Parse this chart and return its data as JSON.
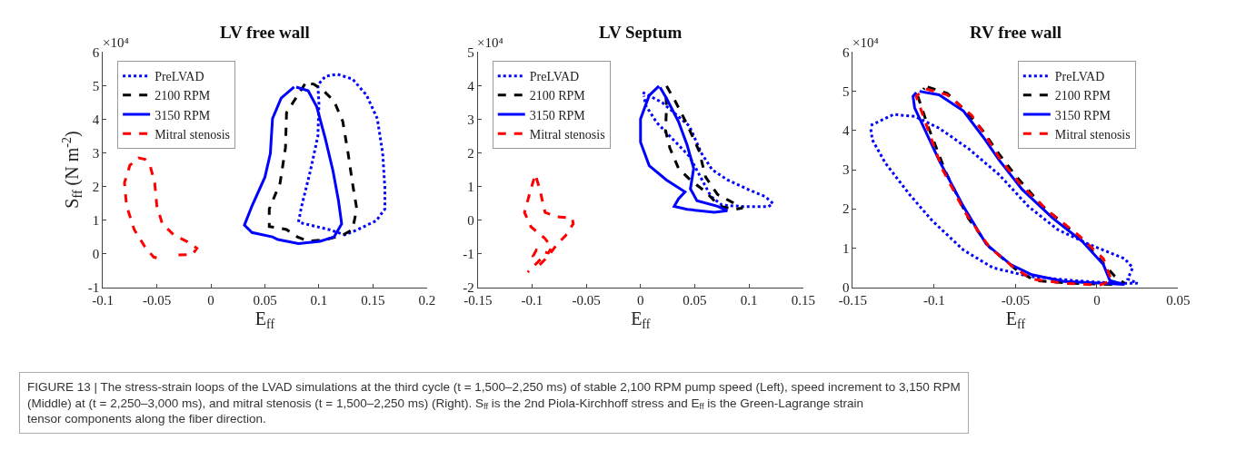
{
  "chart_data": [
    {
      "type": "line",
      "title": "LV free wall",
      "xlabel": "E$_{ff}$",
      "ylabel": "S$_{ff}$ (N m$^{-2}$)",
      "xlim": [
        -0.1,
        0.2
      ],
      "xticks": [
        -0.1,
        -0.05,
        0,
        0.05,
        0.1,
        0.15,
        0.2
      ],
      "ylim": [
        -1,
        6
      ],
      "yticks": [
        -1,
        0,
        1,
        2,
        3,
        4,
        5,
        6
      ],
      "legend": "top left",
      "annotations": [
        "×10⁴"
      ],
      "series": [
        {
          "name": "PreLVAD",
          "color": "#0000ff",
          "line_style": "dotted",
          "x": [
            0.081,
            0.084,
            0.092,
            0.099,
            0.1,
            0.099,
            0.106,
            0.117,
            0.131,
            0.144,
            0.154,
            0.159,
            0.161,
            0.161,
            0.153,
            0.136,
            0.124,
            0.109,
            0.092,
            0.083
          ],
          "values": [
            0.94,
            1.42,
            2.46,
            3.5,
            4.46,
            5.02,
            5.28,
            5.34,
            5.2,
            4.72,
            4.02,
            2.98,
            1.94,
            1.33,
            0.98,
            0.72,
            0.56,
            0.72,
            0.85,
            0.92
          ]
        },
        {
          "name": "2100 RPM",
          "color": "#000000",
          "line_style": "dashed",
          "x": [
            0.087,
            0.07,
            0.069,
            0.064,
            0.054,
            0.054,
            0.07,
            0.08,
            0.09,
            0.106,
            0.122,
            0.131,
            0.135,
            0.131,
            0.127,
            0.122,
            0.114,
            0.103,
            0.095,
            0.089
          ],
          "values": [
            5.05,
            4.2,
            3.15,
            2.1,
            1.33,
            0.81,
            0.72,
            0.5,
            0.37,
            0.42,
            0.55,
            0.72,
            1.33,
            2.1,
            2.98,
            3.94,
            4.54,
            4.89,
            5.05,
            5.06
          ]
        },
        {
          "name": "3150 RPM",
          "color": "#0000ff",
          "line_style": "solid",
          "x": [
            0.077,
            0.065,
            0.057,
            0.055,
            0.05,
            0.038,
            0.031,
            0.038,
            0.057,
            0.062,
            0.081,
            0.101,
            0.114,
            0.121,
            0.118,
            0.113,
            0.106,
            0.098,
            0.09,
            0.079
          ],
          "values": [
            4.96,
            4.63,
            4.02,
            2.98,
            2.28,
            1.42,
            0.85,
            0.63,
            0.5,
            0.42,
            0.3,
            0.37,
            0.5,
            0.89,
            1.59,
            2.46,
            3.41,
            4.37,
            4.85,
            4.96
          ]
        },
        {
          "name": "Mitral stenosis",
          "color": "#ff0000",
          "line_style": "dashed",
          "x": [
            -0.03,
            -0.017,
            -0.013,
            -0.02,
            -0.034,
            -0.045,
            -0.05,
            -0.052,
            -0.056,
            -0.061,
            -0.067,
            -0.075,
            -0.08,
            -0.078,
            -0.071,
            -0.061,
            -0.053,
            -0.047
          ],
          "values": [
            -0.04,
            -0.02,
            0.16,
            0.33,
            0.55,
            0.89,
            1.42,
            2.11,
            2.59,
            2.81,
            2.85,
            2.63,
            2.11,
            1.42,
            0.72,
            0.2,
            -0.1,
            -0.15
          ]
        }
      ]
    },
    {
      "type": "line",
      "title": "LV Septum",
      "xlabel": "E$_{ff}$",
      "xlim": [
        -0.15,
        0.15
      ],
      "xticks": [
        -0.15,
        -0.1,
        -0.05,
        0,
        0.05,
        0.1,
        0.15
      ],
      "ylim": [
        -2,
        5
      ],
      "yticks": [
        -2,
        -1,
        0,
        1,
        2,
        3,
        4,
        5
      ],
      "legend": "top left",
      "annotations": [
        "×10⁴"
      ],
      "series": [
        {
          "name": "PreLVAD",
          "color": "#0000ff",
          "line_style": "dotted",
          "x": [
            0.002,
            0.02,
            0.045,
            0.056,
            0.066,
            0.08,
            0.1,
            0.115,
            0.122,
            0.118,
            0.095,
            0.075,
            0.065,
            0.055,
            0.045,
            0.03,
            0.015,
            0.005,
            0.003
          ],
          "values": [
            3.8,
            3.5,
            2.8,
            2.0,
            1.5,
            1.2,
            0.9,
            0.7,
            0.5,
            0.4,
            0.4,
            0.45,
            0.7,
            1.3,
            1.9,
            2.4,
            2.9,
            3.4,
            3.7
          ]
        },
        {
          "name": "2100 RPM",
          "color": "#000000",
          "line_style": "dashed",
          "x": [
            0.024,
            0.032,
            0.043,
            0.054,
            0.06,
            0.071,
            0.084,
            0.094,
            0.087,
            0.073,
            0.06,
            0.046,
            0.035,
            0.027,
            0.023,
            0.024,
            0.023
          ],
          "values": [
            3.99,
            3.54,
            2.84,
            2.06,
            1.28,
            0.76,
            0.54,
            0.36,
            0.32,
            0.41,
            0.84,
            1.19,
            1.54,
            2.15,
            2.67,
            3.36,
            3.9
          ]
        },
        {
          "name": "3150 RPM",
          "color": "#0000ff",
          "line_style": "solid",
          "x": [
            0.017,
            0.008,
            0.0,
            0.0,
            0.008,
            0.024,
            0.041,
            0.035,
            0.031,
            0.043,
            0.068,
            0.08,
            0.071,
            0.052,
            0.046,
            0.049,
            0.043,
            0.035,
            0.024,
            0.018
          ],
          "values": [
            3.99,
            3.71,
            3.01,
            2.32,
            1.62,
            1.19,
            0.84,
            0.63,
            0.41,
            0.32,
            0.23,
            0.28,
            0.41,
            0.58,
            0.93,
            1.54,
            2.23,
            2.93,
            3.62,
            3.95
          ]
        },
        {
          "name": "Mitral stenosis",
          "color": "#ff0000",
          "line_style": "dashed",
          "x": [
            -0.093,
            -0.085,
            -0.077,
            -0.069,
            -0.062,
            -0.063,
            -0.077,
            -0.088,
            -0.093,
            -0.097,
            -0.101,
            -0.107,
            -0.101,
            -0.088,
            -0.082,
            -0.085,
            -0.096,
            -0.099,
            -0.092,
            -0.101,
            -0.104
          ],
          "values": [
            -1.33,
            -1.07,
            -0.72,
            -0.46,
            -0.11,
            0.06,
            0.1,
            0.23,
            0.93,
            1.36,
            0.93,
            0.23,
            -0.2,
            -0.55,
            -0.81,
            -0.98,
            -0.89,
            -1.07,
            -1.16,
            -1.46,
            -1.55
          ]
        }
      ]
    },
    {
      "type": "line",
      "title": "RV free wall",
      "xlabel": "E$_{ff}$",
      "xlim": [
        -0.15,
        0.05
      ],
      "xticks": [
        -0.15,
        -0.1,
        -0.05,
        0,
        0.05
      ],
      "ylim": [
        0,
        6
      ],
      "yticks": [
        0,
        1,
        2,
        3,
        4,
        5,
        6
      ],
      "legend": "top right",
      "annotations": [
        "×10⁴",
        "FIGURE 13 | The stress-strain loops of the LVAD simulations at the third cycle (t = 1,500–2,250 ms) of stable 2,100 RPM pump speed (Left), speed increment to 3,150 RPM (Middle) at (t = 2,250–3,000 ms), and mitral stenosis (t = 1,500–2,250 ms) (Right). S$_{ff}$ is the 2nd Piola-Kirchhoff stress and E$_{ff}$ is the Green-Lagrange strain tensor components along the fiber direction."
      ],
      "series": [
        {
          "name": "PreLVAD",
          "color": "#0000ff",
          "line_style": "dotted",
          "x": [
            -0.139,
            -0.125,
            -0.112,
            -0.097,
            -0.079,
            -0.06,
            -0.042,
            -0.024,
            -0.005,
            0.017,
            0.022,
            0.019,
            0.025,
            0.013,
            -0.014,
            -0.042,
            -0.064,
            -0.082,
            -0.101,
            -0.115,
            -0.13,
            -0.138,
            -0.139
          ],
          "values": [
            4.13,
            4.41,
            4.36,
            4.06,
            3.54,
            2.87,
            2.06,
            1.47,
            1.1,
            0.73,
            0.5,
            0.21,
            0.1,
            0.1,
            0.17,
            0.28,
            0.5,
            0.95,
            1.69,
            2.36,
            3.17,
            3.76,
            4.05
          ]
        },
        {
          "name": "2100 RPM",
          "color": "#000000",
          "line_style": "dashed",
          "x": [
            -0.104,
            -0.092,
            -0.079,
            -0.07,
            -0.06,
            -0.049,
            -0.033,
            -0.014,
            0.0,
            0.011,
            0.017,
            0.009,
            -0.014,
            -0.038,
            -0.049,
            -0.066,
            -0.079,
            -0.093,
            -0.104,
            -0.11,
            -0.106
          ],
          "values": [
            5.11,
            4.95,
            4.43,
            3.99,
            3.39,
            2.8,
            2.06,
            1.39,
            0.8,
            0.28,
            0.1,
            0.07,
            0.1,
            0.17,
            0.43,
            1.02,
            1.76,
            2.95,
            4.13,
            4.87,
            5.08
          ]
        },
        {
          "name": "3150 RPM",
          "color": "#0000ff",
          "line_style": "solid",
          "x": [
            -0.109,
            -0.097,
            -0.082,
            -0.07,
            -0.06,
            -0.046,
            -0.027,
            -0.009,
            0.004,
            0.008,
            0.017,
            0.004,
            -0.02,
            -0.04,
            -0.053,
            -0.068,
            -0.082,
            -0.097,
            -0.112,
            -0.113,
            -0.111
          ],
          "values": [
            5.0,
            4.91,
            4.5,
            3.84,
            3.24,
            2.5,
            1.76,
            1.17,
            0.58,
            0.17,
            0.07,
            0.1,
            0.15,
            0.32,
            0.58,
            1.1,
            2.06,
            3.24,
            4.58,
            4.87,
            4.97
          ]
        },
        {
          "name": "Mitral stenosis",
          "color": "#ff0000",
          "line_style": "dashed",
          "x": [
            -0.105,
            -0.092,
            -0.077,
            -0.068,
            -0.059,
            -0.046,
            -0.029,
            -0.011,
            0.004,
            0.009,
            0.002,
            -0.02,
            -0.04,
            -0.051,
            -0.066,
            -0.081,
            -0.095,
            -0.106,
            -0.111,
            -0.107
          ],
          "values": [
            5.06,
            4.91,
            4.39,
            3.84,
            3.24,
            2.58,
            1.91,
            1.32,
            0.73,
            0.17,
            0.06,
            0.1,
            0.21,
            0.5,
            1.02,
            1.91,
            3.02,
            4.28,
            4.87,
            5.03
          ]
        }
      ]
    }
  ]
}
